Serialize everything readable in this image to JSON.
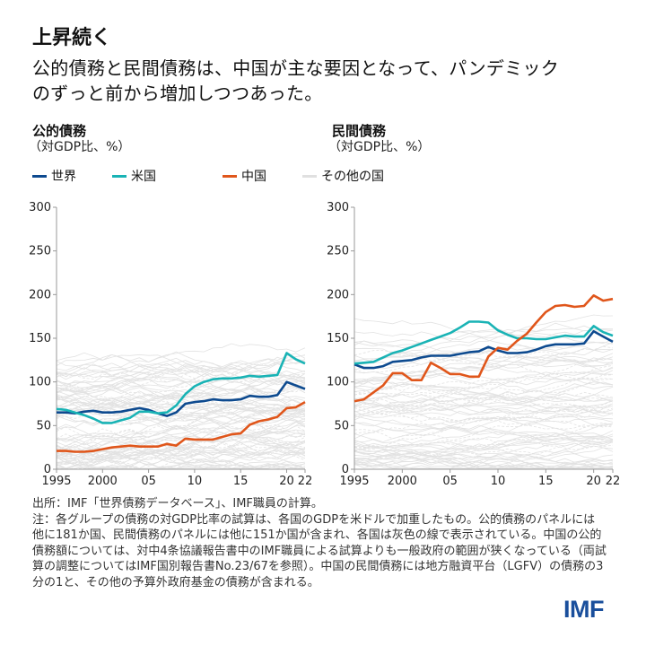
{
  "title": "上昇続く",
  "subtitle_lines": [
    "公的債務と民間債務は、中国が主な要因となって、パンデミック",
    "のずっと前から増加しつつあった。"
  ],
  "legend": [
    {
      "label": "世界",
      "color": "#0d4a8f"
    },
    {
      "label": "米国",
      "color": "#19b3b5"
    },
    {
      "label": "中国",
      "color": "#e0561b"
    },
    {
      "label": "その他の国",
      "color": "#e0e0e0"
    }
  ],
  "chart_data": [
    {
      "type": "line",
      "title": "公的債務",
      "ylabel": "（対GDP比、%）",
      "ylim": [
        0,
        300
      ],
      "yticks": [
        "0",
        "50",
        "100",
        "150",
        "200",
        "250",
        "300"
      ],
      "xlim": [
        1995,
        2022
      ],
      "xtick_labels": [
        "1995",
        "2000",
        "05",
        "10",
        "15",
        "20",
        "22"
      ],
      "xtick_years": [
        1995,
        2000,
        2005,
        2010,
        2015,
        2020,
        2022
      ],
      "x": [
        1995,
        1996,
        1997,
        1998,
        1999,
        2000,
        2001,
        2002,
        2003,
        2004,
        2005,
        2006,
        2007,
        2008,
        2009,
        2010,
        2011,
        2012,
        2013,
        2014,
        2015,
        2016,
        2017,
        2018,
        2019,
        2020,
        2021,
        2022
      ],
      "series": [
        {
          "name": "世界",
          "color": "#0d4a8f",
          "values": [
            65,
            65,
            64,
            66,
            67,
            65,
            65,
            66,
            68,
            70,
            68,
            64,
            61,
            65,
            75,
            77,
            78,
            80,
            79,
            79,
            80,
            84,
            83,
            83,
            85,
            100,
            96,
            92
          ]
        },
        {
          "name": "米国",
          "color": "#19b3b5",
          "values": [
            69,
            68,
            65,
            62,
            58,
            53,
            53,
            56,
            59,
            66,
            66,
            64,
            65,
            73,
            86,
            95,
            100,
            103,
            104,
            104,
            105,
            107,
            106,
            107,
            108,
            133,
            126,
            121
          ]
        },
        {
          "name": "中国",
          "color": "#e0561b",
          "values": [
            21,
            21,
            20,
            20,
            21,
            23,
            25,
            26,
            27,
            26,
            26,
            26,
            29,
            27,
            35,
            34,
            34,
            34,
            37,
            40,
            41,
            51,
            55,
            57,
            60,
            70,
            71,
            77
          ]
        }
      ],
      "other_countries_count": 181
    },
    {
      "type": "line",
      "title": "民間債務",
      "ylabel": "（対GDP比、%）",
      "ylim": [
        0,
        300
      ],
      "yticks": [
        "0",
        "50",
        "100",
        "150",
        "200",
        "250",
        "300"
      ],
      "xlim": [
        1995,
        2022
      ],
      "xtick_labels": [
        "1995",
        "2000",
        "05",
        "10",
        "15",
        "20",
        "22"
      ],
      "xtick_years": [
        1995,
        2000,
        2005,
        2010,
        2015,
        2020,
        2022
      ],
      "x": [
        1995,
        1996,
        1997,
        1998,
        1999,
        2000,
        2001,
        2002,
        2003,
        2004,
        2005,
        2006,
        2007,
        2008,
        2009,
        2010,
        2011,
        2012,
        2013,
        2014,
        2015,
        2016,
        2017,
        2018,
        2019,
        2020,
        2021,
        2022
      ],
      "series": [
        {
          "name": "世界",
          "color": "#0d4a8f",
          "values": [
            120,
            116,
            116,
            118,
            123,
            124,
            125,
            128,
            130,
            130,
            130,
            132,
            134,
            135,
            140,
            136,
            133,
            133,
            134,
            137,
            141,
            143,
            143,
            143,
            144,
            158,
            152,
            146
          ]
        },
        {
          "name": "米国",
          "color": "#19b3b5",
          "values": [
            121,
            122,
            123,
            128,
            133,
            136,
            140,
            144,
            148,
            152,
            156,
            162,
            169,
            169,
            168,
            159,
            154,
            150,
            150,
            149,
            149,
            151,
            153,
            152,
            152,
            164,
            157,
            153
          ]
        },
        {
          "name": "中国",
          "color": "#e0561b",
          "values": [
            78,
            80,
            88,
            96,
            110,
            110,
            102,
            102,
            122,
            116,
            109,
            109,
            106,
            106,
            129,
            139,
            137,
            147,
            155,
            168,
            180,
            187,
            188,
            186,
            187,
            199,
            193,
            195
          ]
        }
      ],
      "other_countries_count": 151
    }
  ],
  "notes": [
    "出所：IMF「世界債務データベース」、IMF職員の計算。",
    "注：各グループの債務の対GDP比率の試算は、各国のGDPを米ドルで加重したもの。公的債務のパネルには他に181か国、民間債務のパネルには他に151か国が含まれ、各国は灰色の線で表示されている。中国の公的債務額については、対中4条協議報告書中のIMF職員による試算よりも一般政府の範囲が狭くなっている（両試算の調整についてはIMF国別報告書No.23/67を参照）。中国の民間債務には地方融資平台（LGFV）の債務の3分の1と、その他の予算外政府基金の債務が含まれる。"
  ],
  "logo": "IMF"
}
